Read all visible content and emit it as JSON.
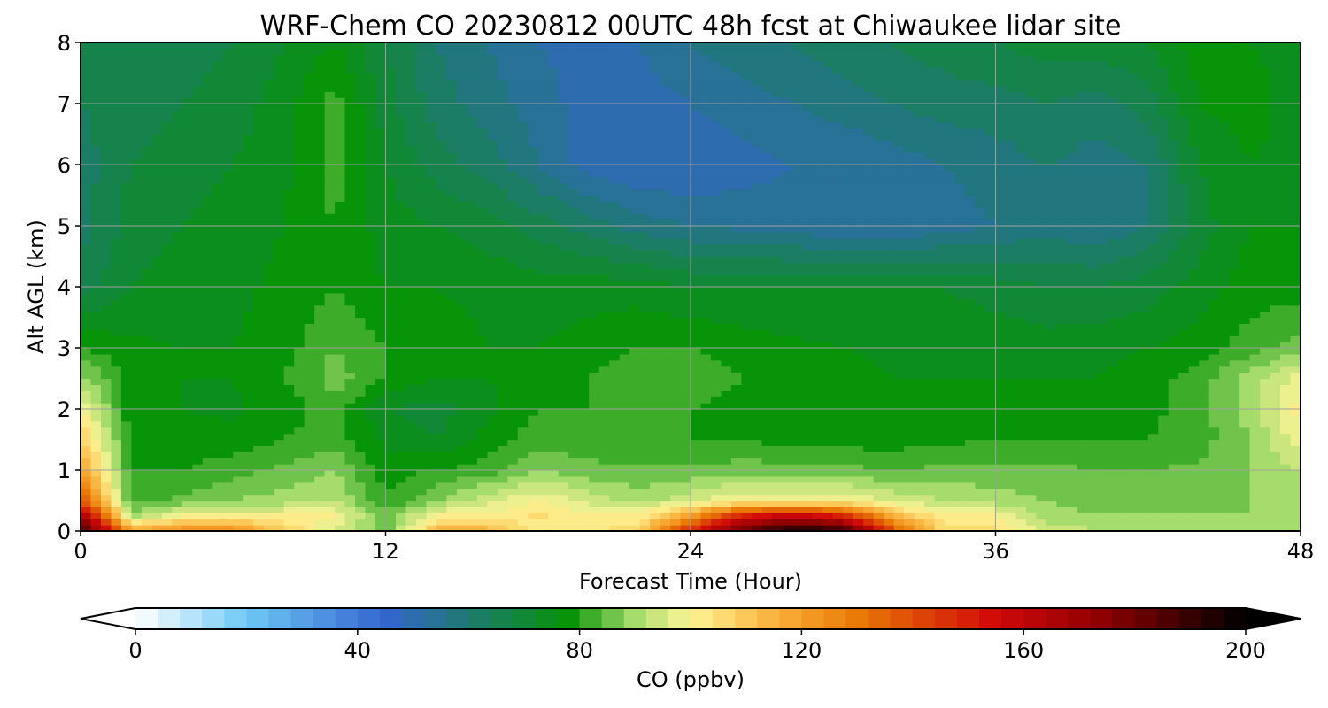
{
  "chart_data": {
    "type": "heatmap",
    "title": "WRF-Chem CO  20230812 00UTC 48h fcst at Chiwaukee lidar site",
    "xlabel": "Forecast Time (Hour)",
    "ylabel": "Alt AGL (km)",
    "xlim": [
      0,
      48
    ],
    "ylim": [
      0,
      8
    ],
    "xticks": [
      0,
      12,
      24,
      36,
      48
    ],
    "yticks": [
      0,
      1,
      2,
      3,
      4,
      5,
      6,
      7,
      8
    ],
    "grid": true,
    "x_hours": [
      0,
      2,
      4,
      6,
      8,
      10,
      12,
      14,
      16,
      18,
      20,
      22,
      24,
      26,
      28,
      30,
      32,
      34,
      36,
      38,
      40,
      42,
      44,
      46,
      48
    ],
    "y_km": [
      0,
      0.25,
      0.5,
      1,
      1.5,
      2,
      2.5,
      3,
      4,
      5,
      6,
      7,
      8
    ],
    "z_ppbv": [
      [
        195,
        120,
        125,
        125,
        110,
        95,
        85,
        115,
        115,
        100,
        100,
        110,
        150,
        185,
        200,
        195,
        140,
        105,
        105,
        95,
        92,
        90,
        90,
        90,
        90
      ],
      [
        170,
        90,
        100,
        100,
        100,
        100,
        85,
        100,
        100,
        105,
        100,
        100,
        120,
        150,
        160,
        150,
        115,
        100,
        100,
        90,
        88,
        88,
        88,
        88,
        90
      ],
      [
        140,
        82,
        85,
        88,
        90,
        92,
        80,
        88,
        95,
        100,
        95,
        90,
        95,
        100,
        100,
        100,
        95,
        92,
        90,
        88,
        86,
        86,
        86,
        88,
        90
      ],
      [
        120,
        80,
        80,
        82,
        85,
        88,
        78,
        80,
        82,
        88,
        85,
        85,
        85,
        86,
        86,
        85,
        84,
        85,
        85,
        85,
        84,
        84,
        85,
        88,
        92
      ],
      [
        110,
        78,
        78,
        78,
        80,
        82,
        75,
        72,
        78,
        82,
        82,
        80,
        80,
        80,
        78,
        78,
        78,
        79,
        80,
        80,
        80,
        80,
        82,
        88,
        98
      ],
      [
        100,
        77,
        76,
        75,
        78,
        82,
        72,
        70,
        75,
        80,
        80,
        80,
        80,
        78,
        77,
        76,
        76,
        77,
        78,
        78,
        78,
        79,
        82,
        90,
        102
      ],
      [
        90,
        78,
        76,
        76,
        80,
        86,
        80,
        76,
        76,
        78,
        80,
        82,
        84,
        80,
        78,
        77,
        76,
        76,
        76,
        76,
        76,
        78,
        82,
        90,
        98
      ],
      [
        80,
        77,
        76,
        76,
        78,
        84,
        80,
        78,
        76,
        76,
        78,
        80,
        80,
        78,
        77,
        76,
        75,
        75,
        75,
        74,
        75,
        76,
        78,
        82,
        86
      ],
      [
        66,
        72,
        74,
        75,
        77,
        80,
        76,
        76,
        75,
        74,
        74,
        74,
        72,
        72,
        72,
        72,
        72,
        72,
        70,
        68,
        68,
        70,
        74,
        78,
        78
      ],
      [
        62,
        70,
        72,
        74,
        76,
        80,
        74,
        72,
        70,
        66,
        62,
        58,
        56,
        55,
        54,
        52,
        52,
        54,
        56,
        58,
        56,
        60,
        70,
        76,
        76
      ],
      [
        62,
        68,
        70,
        72,
        75,
        82,
        72,
        66,
        62,
        56,
        50,
        48,
        48,
        50,
        52,
        52,
        54,
        56,
        58,
        60,
        58,
        60,
        72,
        76,
        74
      ],
      [
        64,
        66,
        68,
        70,
        74,
        82,
        70,
        62,
        58,
        54,
        50,
        50,
        52,
        54,
        56,
        58,
        60,
        62,
        62,
        64,
        62,
        66,
        76,
        78,
        74
      ],
      [
        66,
        64,
        66,
        68,
        72,
        76,
        68,
        60,
        56,
        52,
        50,
        52,
        56,
        58,
        60,
        62,
        64,
        66,
        68,
        70,
        70,
        72,
        78,
        76,
        74
      ]
    ],
    "colorbar": {
      "label": "CO  (ppbv)",
      "min": 0,
      "max": 200,
      "ticks": [
        0,
        40,
        80,
        120,
        160,
        200
      ],
      "extend": "both",
      "colors": [
        {
          "v": 0,
          "c": "#ffffff"
        },
        {
          "v": 20,
          "c": "#6ec8f5"
        },
        {
          "v": 45,
          "c": "#3565cf"
        },
        {
          "v": 60,
          "c": "#1e7a70"
        },
        {
          "v": 78,
          "c": "#079408"
        },
        {
          "v": 90,
          "c": "#a6dc6c"
        },
        {
          "v": 100,
          "c": "#fff596"
        },
        {
          "v": 115,
          "c": "#fab23c"
        },
        {
          "v": 130,
          "c": "#e87a05"
        },
        {
          "v": 155,
          "c": "#d10808"
        },
        {
          "v": 175,
          "c": "#8a0000"
        },
        {
          "v": 200,
          "c": "#000000"
        }
      ]
    }
  }
}
